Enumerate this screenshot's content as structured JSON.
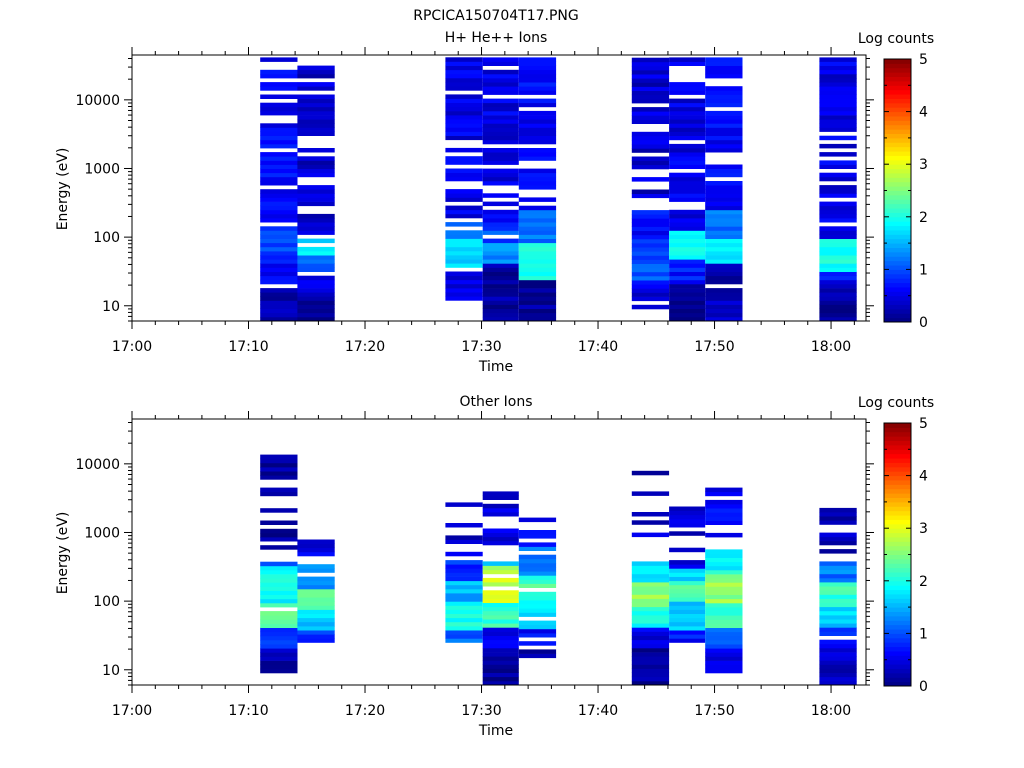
{
  "figure_title": "RPCICA150704T17.PNG",
  "colors": {
    "cmap": [
      "#00007f",
      "#0000ff",
      "#007fff",
      "#00ffff",
      "#7fff7f",
      "#ffff00",
      "#ff7f00",
      "#ff0000",
      "#7f0000"
    ]
  },
  "chart_data": [
    {
      "type": "heatmap",
      "title": "H+ He++ Ions",
      "xlabel": "Time",
      "ylabel": "Energy (eV)",
      "x_ticks": [
        "17:00",
        "17:10",
        "17:20",
        "17:30",
        "17:40",
        "17:50",
        "18:00"
      ],
      "x_range_min": [
        0,
        63
      ],
      "y_scale": "log",
      "y_ticks": [
        "10",
        "100",
        "1000",
        "10000"
      ],
      "y_range": [
        6,
        45000
      ],
      "colorbar": {
        "label": "Log counts",
        "range": [
          0,
          5
        ],
        "ticks": [
          "0",
          "1",
          "2",
          "3",
          "4",
          "5"
        ]
      },
      "columns": [
        {
          "t_start_min": 11.0,
          "t_end_min": 14.2,
          "e_min": 6,
          "e_max": 40000,
          "profile": "h_a",
          "seed": 1
        },
        {
          "t_start_min": 14.2,
          "t_end_min": 17.4,
          "e_min": 6,
          "e_max": 40000,
          "profile": "h_b",
          "seed": 2
        },
        {
          "t_start_min": 26.9,
          "t_end_min": 30.1,
          "e_min": 12,
          "e_max": 40000,
          "profile": "h_c",
          "seed": 3
        },
        {
          "t_start_min": 30.1,
          "t_end_min": 33.2,
          "e_min": 6,
          "e_max": 40000,
          "profile": "h_d",
          "seed": 4
        },
        {
          "t_start_min": 33.2,
          "t_end_min": 36.4,
          "e_min": 6,
          "e_max": 40000,
          "profile": "h_e",
          "seed": 5
        },
        {
          "t_start_min": 42.9,
          "t_end_min": 46.1,
          "e_min": 9,
          "e_max": 40000,
          "profile": "h_f",
          "seed": 6
        },
        {
          "t_start_min": 46.1,
          "t_end_min": 49.2,
          "e_min": 6,
          "e_max": 40000,
          "profile": "h_g",
          "seed": 7
        },
        {
          "t_start_min": 49.2,
          "t_end_min": 52.4,
          "e_min": 6,
          "e_max": 40000,
          "profile": "h_h",
          "seed": 8
        },
        {
          "t_start_min": 59.0,
          "t_end_min": 62.2,
          "e_min": 6,
          "e_max": 38000,
          "profile": "h_i",
          "seed": 9
        }
      ]
    },
    {
      "type": "heatmap",
      "title": "Other Ions",
      "xlabel": "Time",
      "ylabel": "Energy (eV)",
      "x_ticks": [
        "17:00",
        "17:10",
        "17:20",
        "17:30",
        "17:40",
        "17:50",
        "18:00"
      ],
      "x_range_min": [
        0,
        63
      ],
      "y_scale": "log",
      "y_ticks": [
        "10",
        "100",
        "1000",
        "10000"
      ],
      "y_range": [
        6,
        45000
      ],
      "colorbar": {
        "label": "Log counts",
        "range": [
          0,
          5
        ],
        "ticks": [
          "0",
          "1",
          "2",
          "3",
          "4",
          "5"
        ]
      },
      "columns": [
        {
          "t_start_min": 11.0,
          "t_end_min": 14.2,
          "e_min": 9,
          "e_max": 13000,
          "profile": "o_a",
          "seed": 11
        },
        {
          "t_start_min": 14.2,
          "t_end_min": 17.4,
          "e_min": 25,
          "e_max": 900,
          "profile": "o_b",
          "seed": 12
        },
        {
          "t_start_min": 26.9,
          "t_end_min": 30.1,
          "e_min": 25,
          "e_max": 2700,
          "profile": "o_c",
          "seed": 13
        },
        {
          "t_start_min": 30.1,
          "t_end_min": 33.2,
          "e_min": 6,
          "e_max": 3500,
          "profile": "o_d",
          "seed": 14
        },
        {
          "t_start_min": 33.2,
          "t_end_min": 36.4,
          "e_min": 15,
          "e_max": 1700,
          "profile": "o_e",
          "seed": 15
        },
        {
          "t_start_min": 42.9,
          "t_end_min": 46.1,
          "e_min": 6,
          "e_max": 10000,
          "profile": "o_f",
          "seed": 16
        },
        {
          "t_start_min": 46.1,
          "t_end_min": 49.2,
          "e_min": 25,
          "e_max": 3100,
          "profile": "o_g",
          "seed": 17
        },
        {
          "t_start_min": 49.2,
          "t_end_min": 52.4,
          "e_min": 9,
          "e_max": 5200,
          "profile": "o_h",
          "seed": 18
        },
        {
          "t_start_min": 59.0,
          "t_end_min": 62.2,
          "e_min": 6,
          "e_max": 2300,
          "profile": "o_i",
          "seed": 19
        }
      ]
    }
  ]
}
